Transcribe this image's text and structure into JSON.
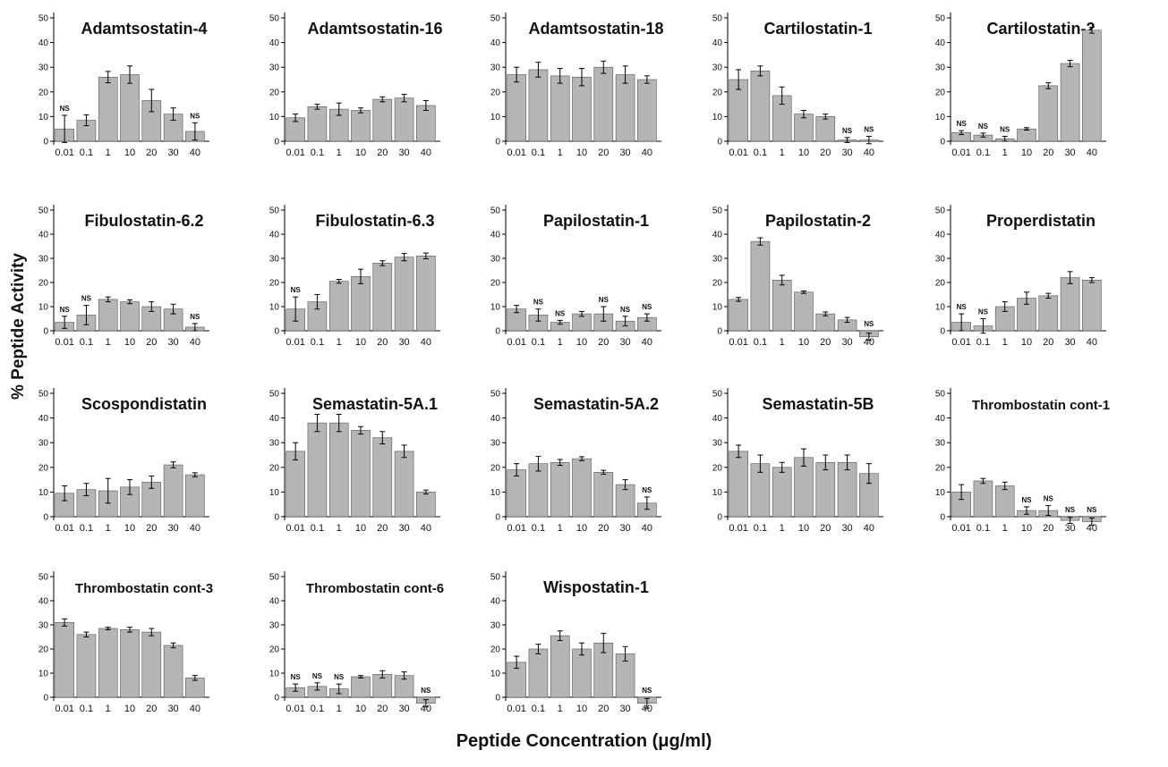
{
  "ylabel": "% Peptide Activity",
  "xlabel": "Peptide Concentration (μg/ml)",
  "colors": {
    "bar": "#b5b5b5",
    "bar_edge": "#555555",
    "axis": "#000000",
    "text": "#111111"
  },
  "chart_data": [
    {
      "type": "bar",
      "title": "Adamtsostatin-4",
      "categories": [
        "0.01",
        "0.1",
        "1",
        "10",
        "20",
        "30",
        "40"
      ],
      "values": [
        5,
        8.5,
        26,
        27,
        16.5,
        11,
        4
      ],
      "errors": [
        5.5,
        2.2,
        2.3,
        3.5,
        4.5,
        2.5,
        3.5
      ],
      "ns": [
        true,
        false,
        false,
        false,
        false,
        false,
        true
      ],
      "ylim": [
        0,
        50
      ],
      "yticks": [
        0,
        10,
        20,
        30,
        40,
        50
      ]
    },
    {
      "type": "bar",
      "title": "Adamtsostatin-16",
      "categories": [
        "0.01",
        "0.1",
        "1",
        "10",
        "20",
        "30",
        "40"
      ],
      "values": [
        9.5,
        14,
        13,
        12.5,
        17,
        17.5,
        14.5
      ],
      "errors": [
        1.5,
        1,
        2.5,
        1,
        1,
        1.5,
        2
      ],
      "ns": [
        false,
        false,
        false,
        false,
        false,
        false,
        false
      ],
      "ylim": [
        0,
        50
      ],
      "yticks": [
        0,
        10,
        20,
        30,
        40,
        50
      ]
    },
    {
      "type": "bar",
      "title": "Adamtsostatin-18",
      "categories": [
        "0.01",
        "0.1",
        "1",
        "10",
        "20",
        "30",
        "40"
      ],
      "values": [
        27,
        29,
        26.5,
        26,
        30,
        27,
        25
      ],
      "errors": [
        3,
        3,
        3,
        3.5,
        2.5,
        3.5,
        1.5
      ],
      "ns": [
        false,
        false,
        false,
        false,
        false,
        false,
        false
      ],
      "ylim": [
        0,
        50
      ],
      "yticks": [
        0,
        10,
        20,
        30,
        40,
        50
      ]
    },
    {
      "type": "bar",
      "title": "Cartilostatin-1",
      "categories": [
        "0.01",
        "0.1",
        "1",
        "10",
        "20",
        "30",
        "40"
      ],
      "values": [
        25,
        28.5,
        18.5,
        11,
        10,
        0.5,
        0.5
      ],
      "errors": [
        4,
        2,
        3.5,
        1.5,
        1,
        1,
        1.5
      ],
      "ns": [
        false,
        false,
        false,
        false,
        false,
        true,
        true
      ],
      "ylim": [
        0,
        50
      ],
      "yticks": [
        0,
        10,
        20,
        30,
        40,
        50
      ]
    },
    {
      "type": "bar",
      "title": "Cartilostatin-2",
      "categories": [
        "0.01",
        "0.1",
        "1",
        "10",
        "20",
        "30",
        "40"
      ],
      "values": [
        3.5,
        2.5,
        1,
        5,
        22.5,
        31.5,
        45
      ],
      "errors": [
        0.8,
        0.8,
        1,
        0.5,
        1.2,
        1.3,
        1.2
      ],
      "ns": [
        true,
        true,
        true,
        false,
        false,
        false,
        false
      ],
      "ylim": [
        0,
        50
      ],
      "yticks": [
        0,
        10,
        20,
        30,
        40,
        50
      ]
    },
    {
      "type": "bar",
      "title": "Fibulostatin-6.2",
      "categories": [
        "0.01",
        "0.1",
        "1",
        "10",
        "20",
        "30",
        "40"
      ],
      "values": [
        3.5,
        6.5,
        13,
        12,
        10,
        9,
        1.5
      ],
      "errors": [
        2.5,
        4,
        1,
        0.8,
        2,
        2,
        1.5
      ],
      "ns": [
        true,
        true,
        false,
        false,
        false,
        false,
        true
      ],
      "ylim": [
        0,
        50
      ],
      "yticks": [
        0,
        10,
        20,
        30,
        40,
        50
      ]
    },
    {
      "type": "bar",
      "title": "Fibulostatin-6.3",
      "categories": [
        "0.01",
        "0.1",
        "1",
        "10",
        "20",
        "30",
        "40"
      ],
      "values": [
        9,
        12,
        20.5,
        22.5,
        28,
        30.5,
        31
      ],
      "errors": [
        5,
        3,
        0.8,
        3,
        1,
        1.5,
        1.2
      ],
      "ns": [
        true,
        false,
        false,
        false,
        false,
        false,
        false
      ],
      "ylim": [
        0,
        50
      ],
      "yticks": [
        0,
        10,
        20,
        30,
        40,
        50
      ]
    },
    {
      "type": "bar",
      "title": "Papilostatin-1",
      "categories": [
        "0.01",
        "0.1",
        "1",
        "10",
        "20",
        "30",
        "40"
      ],
      "values": [
        9,
        6.5,
        3.5,
        7,
        7,
        4,
        5.5
      ],
      "errors": [
        1.5,
        2.5,
        0.8,
        1,
        3,
        2,
        1.5
      ],
      "ns": [
        false,
        true,
        true,
        false,
        true,
        true,
        true
      ],
      "ylim": [
        0,
        50
      ],
      "yticks": [
        0,
        10,
        20,
        30,
        40,
        50
      ]
    },
    {
      "type": "bar",
      "title": "Papilostatin-2",
      "categories": [
        "0.01",
        "0.1",
        "1",
        "10",
        "20",
        "30",
        "40"
      ],
      "values": [
        13,
        37,
        21,
        16,
        7,
        4.5,
        -2.5
      ],
      "errors": [
        0.8,
        1.5,
        2,
        0.5,
        0.8,
        1,
        1.5
      ],
      "ns": [
        false,
        false,
        false,
        false,
        false,
        false,
        true
      ],
      "ylim": [
        0,
        50
      ],
      "yticks": [
        0,
        10,
        20,
        30,
        40,
        50
      ]
    },
    {
      "type": "bar",
      "title": "Properdistatin",
      "categories": [
        "0.01",
        "0.1",
        "1",
        "10",
        "20",
        "30",
        "40"
      ],
      "values": [
        3.5,
        2,
        10,
        13.5,
        14.5,
        22,
        21
      ],
      "errors": [
        3.5,
        3,
        2,
        2.5,
        1,
        2.5,
        1
      ],
      "ns": [
        true,
        true,
        false,
        false,
        false,
        false,
        false
      ],
      "ylim": [
        0,
        50
      ],
      "yticks": [
        0,
        10,
        20,
        30,
        40,
        50
      ]
    },
    {
      "type": "bar",
      "title": "Scospondistatin",
      "categories": [
        "0.01",
        "0.1",
        "1",
        "10",
        "20",
        "30",
        "40"
      ],
      "values": [
        9.5,
        11,
        10.5,
        12,
        14,
        21,
        17
      ],
      "errors": [
        3,
        2.5,
        5,
        3,
        2.5,
        1.2,
        0.8
      ],
      "ns": [
        false,
        false,
        false,
        false,
        false,
        false,
        false
      ],
      "ylim": [
        0,
        50
      ],
      "yticks": [
        0,
        10,
        20,
        30,
        40,
        50
      ]
    },
    {
      "type": "bar",
      "title": "Semastatin-5A.1",
      "categories": [
        "0.01",
        "0.1",
        "1",
        "10",
        "20",
        "30",
        "40"
      ],
      "values": [
        26.5,
        38,
        38,
        35,
        32,
        26.5,
        10
      ],
      "errors": [
        3.5,
        3.5,
        3.5,
        1.5,
        2.5,
        2.5,
        0.8
      ],
      "ns": [
        false,
        false,
        false,
        false,
        false,
        false,
        false
      ],
      "ylim": [
        0,
        50
      ],
      "yticks": [
        0,
        10,
        20,
        30,
        40,
        50
      ]
    },
    {
      "type": "bar",
      "title": "Semastatin-5A.2",
      "categories": [
        "0.01",
        "0.1",
        "1",
        "10",
        "20",
        "30",
        "40"
      ],
      "values": [
        19,
        21.5,
        22,
        23.5,
        18,
        13,
        5.5
      ],
      "errors": [
        2.5,
        3,
        1.2,
        0.8,
        0.8,
        2,
        2.5
      ],
      "ns": [
        false,
        false,
        false,
        false,
        false,
        false,
        true
      ],
      "ylim": [
        0,
        50
      ],
      "yticks": [
        0,
        10,
        20,
        30,
        40,
        50
      ]
    },
    {
      "type": "bar",
      "title": "Semastatin-5B",
      "categories": [
        "0.01",
        "0.1",
        "1",
        "10",
        "20",
        "30",
        "40"
      ],
      "values": [
        26.5,
        21.5,
        20,
        24,
        22,
        22,
        17.5
      ],
      "errors": [
        2.5,
        3.5,
        2,
        3.5,
        3,
        3,
        4
      ],
      "ns": [
        false,
        false,
        false,
        false,
        false,
        false,
        false
      ],
      "ylim": [
        0,
        50
      ],
      "yticks": [
        0,
        10,
        20,
        30,
        40,
        50
      ]
    },
    {
      "type": "bar",
      "title": "Thrombostatin cont-1",
      "categories": [
        "0.01",
        "0.1",
        "1",
        "10",
        "20",
        "30",
        "40"
      ],
      "values": [
        10,
        14.5,
        12.5,
        2.5,
        2.5,
        -1.5,
        -2
      ],
      "errors": [
        3,
        1,
        1.5,
        1.5,
        2,
        1.2,
        1.5
      ],
      "ns": [
        false,
        false,
        false,
        true,
        true,
        true,
        true
      ],
      "ylim": [
        0,
        50
      ],
      "yticks": [
        0,
        10,
        20,
        30,
        40,
        50
      ]
    },
    {
      "type": "bar",
      "title": "Thrombostatin cont-3",
      "categories": [
        "0.01",
        "0.1",
        "1",
        "10",
        "20",
        "30",
        "40"
      ],
      "values": [
        31,
        26,
        28.5,
        28,
        27,
        21.5,
        8
      ],
      "errors": [
        1.5,
        1,
        0.5,
        1,
        1.5,
        1,
        1
      ],
      "ns": [
        false,
        false,
        false,
        false,
        false,
        false,
        false
      ],
      "ylim": [
        0,
        50
      ],
      "yticks": [
        0,
        10,
        20,
        30,
        40,
        50
      ]
    },
    {
      "type": "bar",
      "title": "Thrombostatin cont-6",
      "categories": [
        "0.01",
        "0.1",
        "1",
        "10",
        "20",
        "30",
        "40"
      ],
      "values": [
        4,
        4.5,
        3.5,
        8.5,
        9.5,
        9,
        -2.5
      ],
      "errors": [
        1.5,
        1.5,
        2,
        0.5,
        1.5,
        1.5,
        1.5
      ],
      "ns": [
        true,
        true,
        true,
        false,
        false,
        false,
        true
      ],
      "ylim": [
        0,
        50
      ],
      "yticks": [
        0,
        10,
        20,
        30,
        40,
        50
      ]
    },
    {
      "type": "bar",
      "title": "Wispostatin-1",
      "categories": [
        "0.01",
        "0.1",
        "1",
        "10",
        "20",
        "30",
        "40"
      ],
      "values": [
        14.5,
        20,
        25.5,
        20,
        22.5,
        18,
        -2.5
      ],
      "errors": [
        2.5,
        2,
        2,
        2.5,
        4,
        3,
        2
      ],
      "ns": [
        false,
        false,
        false,
        false,
        false,
        false,
        true
      ],
      "ylim": [
        0,
        50
      ],
      "yticks": [
        0,
        10,
        20,
        30,
        40,
        50
      ]
    }
  ]
}
